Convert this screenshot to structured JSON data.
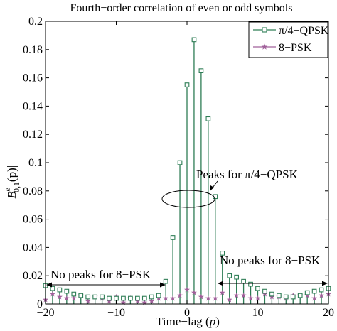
{
  "chart_data": {
    "type": "scatter",
    "title": "Fourth−order correlation of even or odd symbols",
    "xlabel_parts": [
      "Time−lag (",
      "p",
      ")"
    ],
    "ylabel_parts": {
      "bar_open": "|",
      "B": "B",
      "sup": "e",
      "sub": "0,1",
      "arg": "(p)",
      "bar_close": "|"
    },
    "xlim": [
      -20,
      20
    ],
    "ylim": [
      0,
      0.2
    ],
    "x_ticks": [
      -20,
      -10,
      0,
      10,
      20
    ],
    "x_tick_labels": [
      "−20",
      "−10",
      "0",
      "10",
      "20"
    ],
    "y_ticks": [
      0,
      0.02,
      0.04,
      0.06,
      0.08,
      0.1,
      0.12,
      0.14,
      0.16,
      0.18,
      0.2
    ],
    "y_tick_labels": [
      "0",
      "0.02",
      "0.04",
      "0.06",
      "0.08",
      "0.1",
      "0.12",
      "0.14",
      "0.16",
      "0.18",
      "0.2"
    ],
    "grid": false,
    "legend_position": "top-right",
    "series": [
      {
        "name": "π/4−QPSK",
        "marker": "square",
        "color": "#2e7d55",
        "x": [
          -20,
          -19,
          -18,
          -17,
          -16,
          -15,
          -14,
          -13,
          -12,
          -11,
          -10,
          -9,
          -8,
          -7,
          -6,
          -5,
          -4,
          -3,
          -2,
          -1,
          0,
          1,
          2,
          3,
          4,
          5,
          6,
          7,
          8,
          9,
          10,
          11,
          12,
          13,
          14,
          15,
          16,
          17,
          18,
          19,
          20
        ],
        "values": [
          0.013,
          0.011,
          0.01,
          0.009,
          0.007,
          0.006,
          0.005,
          0.005,
          0.005,
          0.004,
          0.004,
          0.004,
          0.004,
          0.004,
          0.004,
          0.005,
          0.006,
          0.016,
          0.047,
          0.1,
          0.155,
          0.187,
          0.165,
          0.131,
          0.076,
          0.036,
          0.02,
          0.019,
          0.016,
          0.014,
          0.011,
          0.009,
          0.007,
          0.006,
          0.005,
          0.005,
          0.006,
          0.008,
          0.009,
          0.01,
          0.011
        ]
      },
      {
        "name": "8−PSK",
        "marker": "star",
        "color": "#a0609a",
        "x": [
          -20,
          -19,
          -18,
          -17,
          -16,
          -15,
          -14,
          -13,
          -12,
          -11,
          -10,
          -9,
          -8,
          -7,
          -6,
          -5,
          -4,
          -3,
          -2,
          -1,
          0,
          1,
          2,
          3,
          4,
          5,
          6,
          7,
          8,
          9,
          10,
          11,
          12,
          13,
          14,
          15,
          16,
          17,
          18,
          19,
          20
        ],
        "values": [
          0.003,
          0.007,
          0.005,
          0.004,
          0.004,
          0.006,
          0.002,
          0.005,
          0.004,
          0.002,
          0.005,
          0.001,
          0.004,
          0.002,
          0.001,
          0.002,
          0.004,
          0.004,
          0.004,
          0.006,
          0.01,
          0.008,
          0.005,
          0.004,
          0.004,
          0.008,
          0.003,
          0.006,
          0.006,
          0.004,
          0.004,
          0.007,
          0.005,
          0.005,
          0.004,
          0.006,
          0.006,
          0.006,
          0.004,
          0.006,
          0.007
        ]
      }
    ],
    "annotations": {
      "peaks_qpsk": "Peaks for π/4−QPSK",
      "no_peaks_left": "No peaks for 8−PSK",
      "no_peaks_right": "No peaks for 8−PSK"
    }
  }
}
